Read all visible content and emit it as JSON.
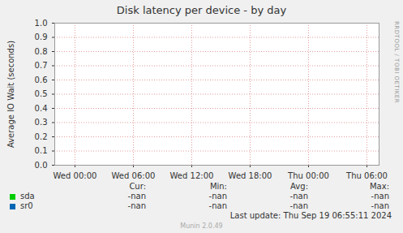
{
  "chart_data": {
    "type": "line",
    "title": "Disk latency per device - by day",
    "ylabel": "Average IO Wait (seconds)",
    "x": [],
    "series": [
      {
        "name": "sda",
        "color": "#00cc00",
        "values": [],
        "stats": [
          "-nan",
          "-nan",
          "-nan",
          "-nan"
        ]
      },
      {
        "name": "sr0",
        "color": "#0066b3",
        "values": [],
        "stats": [
          "-nan",
          "-nan",
          "-nan",
          "-nan"
        ]
      }
    ],
    "stats_columns": [
      "Cur:",
      "Min:",
      "Avg:",
      "Max:"
    ],
    "xlim": [
      -2.08,
      31.25
    ],
    "xticks": [
      {
        "value": 0,
        "label": "Wed 00:00"
      },
      {
        "value": 6,
        "label": "Wed 06:00"
      },
      {
        "value": 12,
        "label": "Wed 12:00"
      },
      {
        "value": 18,
        "label": "Wed 18:00"
      },
      {
        "value": 24,
        "label": "Thu 00:00"
      },
      {
        "value": 30,
        "label": "Thu 06:00"
      }
    ],
    "ylim": [
      0,
      1
    ],
    "yticks": [
      {
        "value": 0,
        "label": "0.0"
      },
      {
        "value": 0.1,
        "label": "0.1"
      },
      {
        "value": 0.2,
        "label": "0.2"
      },
      {
        "value": 0.3,
        "label": "0.3"
      },
      {
        "value": 0.4,
        "label": "0.4"
      },
      {
        "value": 0.5,
        "label": "0.5"
      },
      {
        "value": 0.6,
        "label": "0.6"
      },
      {
        "value": 0.7,
        "label": "0.7"
      },
      {
        "value": 0.8,
        "label": "0.8"
      },
      {
        "value": 0.9,
        "label": "0.9"
      },
      {
        "value": 1,
        "label": "1.0"
      }
    ],
    "grid": true,
    "footer": "Last update: Thu Sep 19 06:55:11 2024",
    "watermark": "Munin 2.0.49",
    "side_text": "RRDTOOL / TOBI OETIKER"
  }
}
